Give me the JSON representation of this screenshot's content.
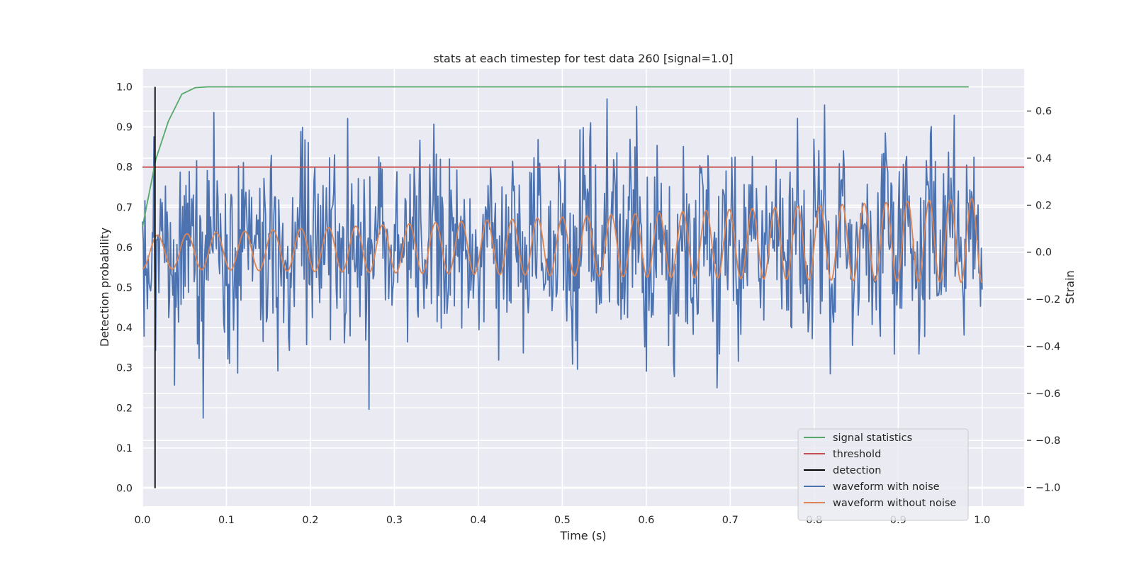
{
  "chart_data": {
    "type": "line",
    "title": "stats at each timestep for test data 260 [signal=1.0]",
    "xlabel": "Time (s)",
    "ylabel_left": "Detection probability",
    "ylabel_right": "Strain",
    "xlim": [
      0.0,
      1.05
    ],
    "ylim_left": [
      -0.045,
      1.045
    ],
    "ylim_right": [
      -1.08,
      0.78
    ],
    "x_ticks": [
      "0.0",
      "0.1",
      "0.2",
      "0.3",
      "0.4",
      "0.5",
      "0.6",
      "0.7",
      "0.8",
      "0.9",
      "1.0"
    ],
    "y_ticks_left": [
      "0.0",
      "0.1",
      "0.2",
      "0.3",
      "0.4",
      "0.5",
      "0.6",
      "0.7",
      "0.8",
      "0.9",
      "1.0"
    ],
    "y_ticks_right": [
      "−1.0",
      "−0.8",
      "−0.6",
      "−0.4",
      "−0.2",
      "0.0",
      "0.2",
      "0.4",
      "0.6"
    ],
    "grid": true,
    "legend_position": "lower-right",
    "series": [
      {
        "name": "signal statistics",
        "axis": "left",
        "color": "#55a868",
        "x": [
          0.0,
          0.016,
          0.031,
          0.047,
          0.063,
          0.078,
          0.094,
          0.2,
          0.4,
          0.6,
          0.8,
          0.984
        ],
        "y": [
          0.65,
          0.82,
          0.915,
          0.982,
          0.998,
          1.0,
          1.0,
          1.0,
          1.0,
          1.0,
          1.0,
          1.0
        ]
      },
      {
        "name": "threshold",
        "axis": "left",
        "color": "#c44e52",
        "x": [
          0.0,
          1.05
        ],
        "y": [
          0.8,
          0.8
        ]
      },
      {
        "name": "detection",
        "axis": "left",
        "color": "#000000",
        "x": [
          0.015,
          0.015
        ],
        "y": [
          0.0,
          1.0
        ]
      },
      {
        "name": "waveform with noise",
        "axis": "right",
        "color": "#4c72b0",
        "generated": true,
        "x_range": [
          0.0,
          1.0
        ],
        "samples": 1024,
        "std": 0.2
      },
      {
        "name": "waveform without noise",
        "axis": "right",
        "color": "#dd8452",
        "generated": true,
        "x_range": [
          0.0,
          1.0
        ],
        "amplitude_start": 0.07,
        "amplitude_end": 0.18,
        "offset_start": 0.0,
        "offset_end": 0.05,
        "freq_start_hz": 28,
        "freq_end_hz": 40
      }
    ]
  }
}
